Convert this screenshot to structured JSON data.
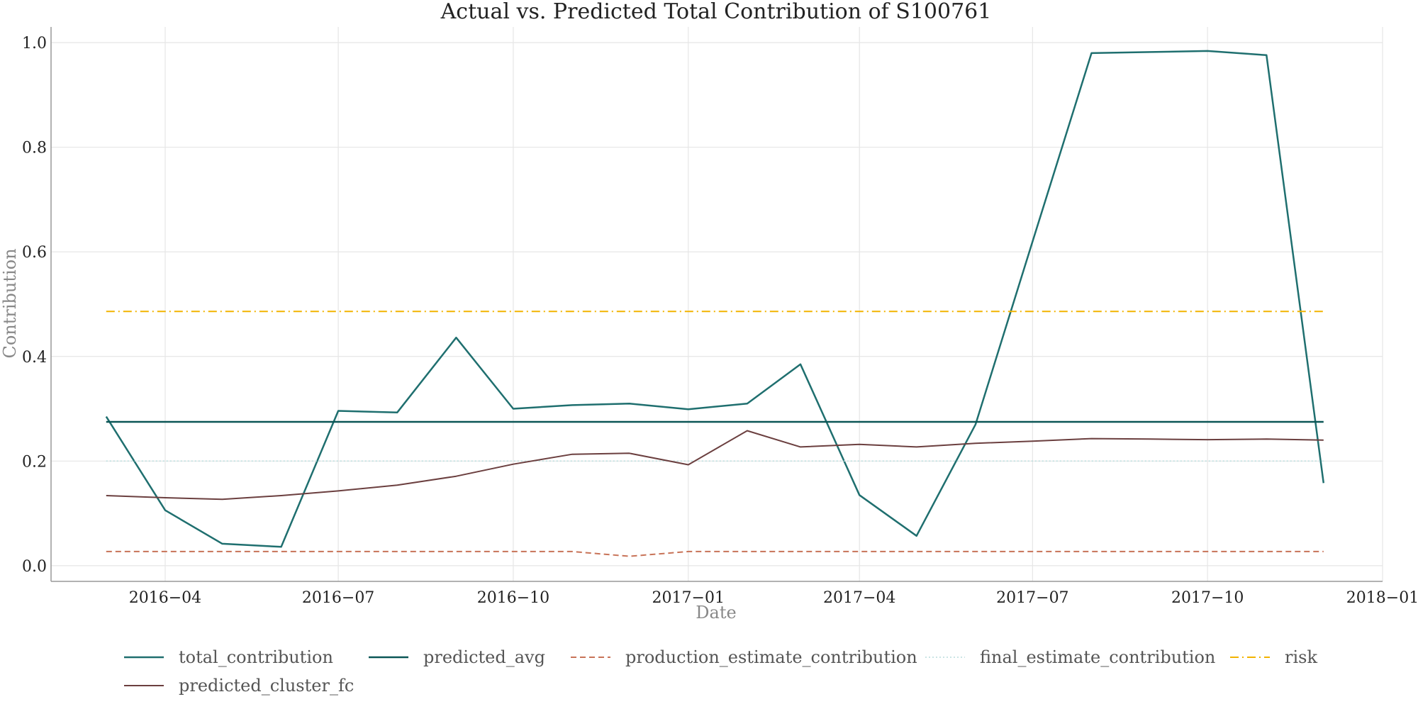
{
  "chart_data": {
    "type": "line",
    "title": "Actual vs. Predicted Total Contribution of S100761",
    "xlabel": "Date",
    "ylabel": "Contribution",
    "xlim": [
      "2016-02-01",
      "2018-01-01"
    ],
    "ylim": [
      -0.03,
      1.03
    ],
    "x_ticks": [
      "2016-04",
      "2016-07",
      "2016-10",
      "2017-01",
      "2017-04",
      "2017-07",
      "2017-10",
      "2018-01"
    ],
    "y_ticks": [
      0.0,
      0.2,
      0.4,
      0.6,
      0.8,
      1.0
    ],
    "grid": true,
    "legend_position": "bottom",
    "x": [
      "2016-03-01",
      "2016-04-01",
      "2016-05-01",
      "2016-06-01",
      "2016-07-01",
      "2016-08-01",
      "2016-09-01",
      "2016-10-01",
      "2016-11-01",
      "2016-12-01",
      "2017-01-01",
      "2017-02-01",
      "2017-03-01",
      "2017-04-01",
      "2017-05-01",
      "2017-06-01",
      "2017-07-01",
      "2017-08-01",
      "2017-09-01",
      "2017-10-01",
      "2017-11-01",
      "2017-12-01"
    ],
    "series": [
      {
        "name": "total_contribution",
        "color": "#1f6f6f",
        "dash": "",
        "width": 2.5,
        "values": [
          0.285,
          0.106,
          0.042,
          0.036,
          0.296,
          0.293,
          0.436,
          0.3,
          0.307,
          0.31,
          0.299,
          0.31,
          0.385,
          0.135,
          0.057,
          0.27,
          0.62,
          0.98,
          0.982,
          0.984,
          0.976,
          0.158
        ]
      },
      {
        "name": "predicted_avg",
        "color": "#0b5656",
        "dash": "",
        "width": 2.5,
        "values": [
          0.275,
          0.275,
          0.275,
          0.275,
          0.275,
          0.275,
          0.275,
          0.275,
          0.275,
          0.275,
          0.275,
          0.275,
          0.275,
          0.275,
          0.275,
          0.275,
          0.275,
          0.275,
          0.275,
          0.275,
          0.275,
          0.275
        ]
      },
      {
        "name": "production_estimate_contribution",
        "color": "#c87358",
        "dash": "8,5",
        "width": 2,
        "values": [
          0.027,
          0.027,
          0.027,
          0.027,
          0.027,
          0.027,
          0.027,
          0.027,
          0.027,
          0.018,
          0.027,
          0.027,
          0.027,
          0.027,
          0.027,
          0.027,
          0.027,
          0.027,
          0.027,
          0.027,
          0.027,
          0.027
        ]
      },
      {
        "name": "final_estimate_contribution",
        "color": "#b8dcdc",
        "dash": "2,3",
        "width": 1.5,
        "values": [
          0.2,
          0.2,
          0.2,
          0.2,
          0.2,
          0.2,
          0.2,
          0.2,
          0.2,
          0.2,
          0.2,
          0.2,
          0.2,
          0.2,
          0.2,
          0.2,
          0.2,
          0.2,
          0.2,
          0.2,
          0.2,
          0.2
        ]
      },
      {
        "name": "risk",
        "color": "#f2b300",
        "dash": "12,5,2,5",
        "width": 2,
        "values": [
          0.486,
          0.486,
          0.486,
          0.486,
          0.486,
          0.486,
          0.486,
          0.486,
          0.486,
          0.486,
          0.486,
          0.486,
          0.486,
          0.486,
          0.486,
          0.486,
          0.486,
          0.486,
          0.486,
          0.486,
          0.486,
          0.486
        ]
      },
      {
        "name": "predicted_cluster_fc",
        "color": "#6b3f3f",
        "dash": "",
        "width": 2,
        "values": [
          0.134,
          0.13,
          0.127,
          0.134,
          0.143,
          0.154,
          0.171,
          0.194,
          0.213,
          0.215,
          0.193,
          0.258,
          0.227,
          0.232,
          0.227,
          0.234,
          0.238,
          0.243,
          0.242,
          0.241,
          0.242,
          0.24
        ]
      }
    ]
  }
}
